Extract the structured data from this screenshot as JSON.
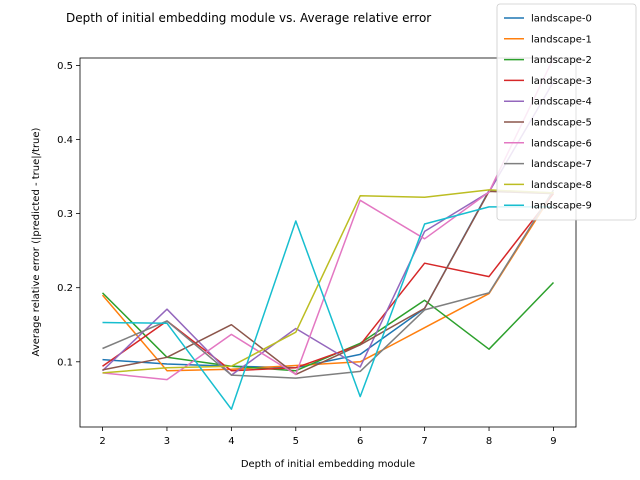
{
  "chart_data": {
    "type": "line",
    "title": "Depth of initial embedding module vs. Average relative error",
    "xlabel": "Depth of initial embedding module",
    "ylabel": "Average relative error (|predicted - true|/true)",
    "x": [
      2,
      3,
      4,
      5,
      6,
      7,
      8,
      9
    ],
    "xlim": [
      1.65,
      9.35
    ],
    "ylim": [
      0.012,
      0.51
    ],
    "xticks": [
      "2",
      "3",
      "4",
      "5",
      "6",
      "7",
      "8",
      "9"
    ],
    "yticks": [
      0.1,
      0.2,
      0.3,
      0.4,
      0.5
    ],
    "ytick_labels": [
      "0.1",
      "0.2",
      "0.3",
      "0.4",
      "0.5"
    ],
    "grid": false,
    "legend_position": "top-right",
    "series": [
      {
        "name": "landscape-0",
        "color": "#1f77b4",
        "values": [
          0.103,
          0.097,
          0.094,
          0.092,
          0.11,
          0.172,
          0.331,
          0.328
        ]
      },
      {
        "name": "landscape-1",
        "color": "#ff7f0e",
        "values": [
          0.19,
          0.088,
          0.09,
          0.095,
          0.1,
          0.146,
          0.192,
          0.329
        ]
      },
      {
        "name": "landscape-2",
        "color": "#2ca02c",
        "values": [
          0.193,
          0.106,
          0.094,
          0.088,
          0.125,
          0.183,
          0.117,
          0.207
        ]
      },
      {
        "name": "landscape-3",
        "color": "#d62728",
        "values": [
          0.094,
          0.155,
          0.088,
          0.092,
          0.123,
          0.233,
          0.215,
          0.327
        ]
      },
      {
        "name": "landscape-4",
        "color": "#9467bd",
        "values": [
          0.088,
          0.171,
          0.082,
          0.145,
          0.093,
          0.276,
          0.329,
          0.478
        ]
      },
      {
        "name": "landscape-5",
        "color": "#8c564b",
        "values": [
          0.089,
          0.106,
          0.15,
          0.083,
          0.123,
          0.172,
          0.33,
          0.327
        ]
      },
      {
        "name": "landscape-6",
        "color": "#e377c2",
        "values": [
          0.085,
          0.076,
          0.137,
          0.083,
          0.318,
          0.266,
          0.329,
          0.51
        ]
      },
      {
        "name": "landscape-7",
        "color": "#7f7f7f",
        "values": [
          0.118,
          0.155,
          0.082,
          0.078,
          0.087,
          0.17,
          0.193,
          0.332
        ]
      },
      {
        "name": "landscape-8",
        "color": "#bcbd22",
        "values": [
          0.085,
          0.092,
          0.094,
          0.14,
          0.324,
          0.322,
          0.332,
          0.328
        ]
      },
      {
        "name": "landscape-9",
        "color": "#17becf",
        "values": [
          0.153,
          0.152,
          0.036,
          0.29,
          0.053,
          0.286,
          0.309,
          0.309
        ]
      }
    ]
  }
}
